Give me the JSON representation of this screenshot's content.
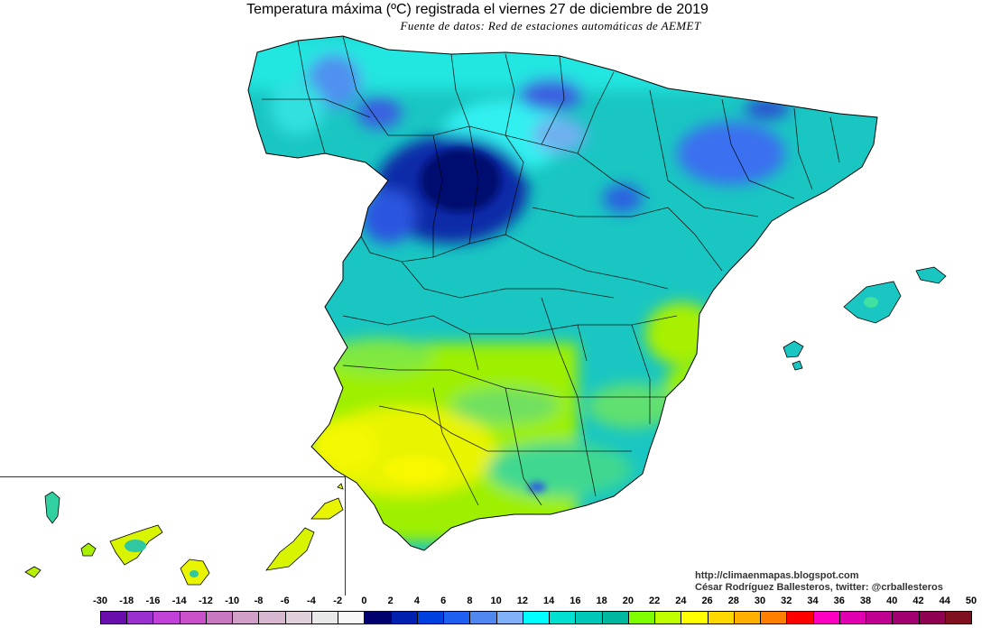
{
  "map": {
    "title": "Temperatura máxima (ºC) registrada el viernes 27 de diciembre de 2019",
    "subtitle": "Fuente de datos: Red de estaciones automáticas de AEMET",
    "credits": {
      "url": "http://climaenmapas.blogspot.com",
      "author": "César Rodríguez Ballesteros, twitter: @crballesteros"
    },
    "regions": [
      "Iberian Peninsula",
      "Balearic Islands",
      "Canary Islands"
    ],
    "legend": {
      "unit": "ºC",
      "ticks": [
        "-30",
        "-18",
        "-16",
        "-14",
        "-12",
        "-10",
        "-8",
        "-6",
        "-4",
        "-2",
        "0",
        "2",
        "4",
        "6",
        "8",
        "10",
        "12",
        "14",
        "16",
        "18",
        "20",
        "22",
        "24",
        "26",
        "28",
        "30",
        "32",
        "34",
        "36",
        "38",
        "40",
        "42",
        "44",
        "50"
      ],
      "colors": [
        "#6a0dad",
        "#9b30d0",
        "#c040d8",
        "#c850c8",
        "#c878c0",
        "#d0a0c8",
        "#d8b8d0",
        "#e0d0dc",
        "#e8e8e8",
        "#f8f8f8",
        "#00006e",
        "#0020b0",
        "#0040e0",
        "#2060f0",
        "#5088f0",
        "#80b0f8",
        "#00ffff",
        "#00e0d0",
        "#00c8b8",
        "#00b8a0",
        "#80ff00",
        "#c0ff00",
        "#ffff00",
        "#ffd800",
        "#ffb000",
        "#ff8000",
        "#ff0000",
        "#ff00c0",
        "#e000b0",
        "#c00090",
        "#a00070",
        "#900050",
        "#801020"
      ]
    }
  }
}
